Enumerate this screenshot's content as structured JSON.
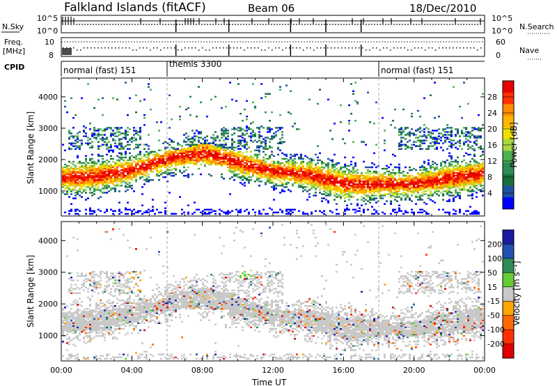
{
  "header": {
    "title": "Falkland Islands (fitACF)",
    "beam": "Beam 06",
    "date": "18/Dec/2010"
  },
  "panels": {
    "nsky_label": "N.Sky",
    "nsearch_label": "N.Search",
    "freq_label_line1": "Freq.",
    "freq_label_line2": "[MHz]",
    "nave_label": "Nave",
    "cpid_label": "CPID",
    "nsky_ticks": [
      "10^5",
      "10^0"
    ],
    "nsearch_ticks": [
      "10^5",
      "10^0"
    ],
    "freq_ticks": [
      "10",
      "8"
    ],
    "nave_ticks": [
      "60",
      "0"
    ]
  },
  "cpid_segments": [
    {
      "label": "normal (fast) 151",
      "start_hour": 0.0,
      "end_hour": 6.0
    },
    {
      "label": "themis 3300",
      "start_hour": 6.0,
      "end_hour": 18.0
    },
    {
      "label": "normal (fast) 151",
      "start_hour": 18.0,
      "end_hour": 24.0
    }
  ],
  "colorbars": {
    "power": {
      "label": "Power [dB]",
      "ticks": [
        "28",
        "24",
        "20",
        "16",
        "12",
        "8",
        "4"
      ],
      "colors": [
        "#e60000",
        "#ff3000",
        "#ff8c00",
        "#ffb400",
        "#f0e000",
        "#a8d840",
        "#50b050",
        "#2e8b57",
        "#1a6e3a",
        "#1e50a0",
        "#0000ff"
      ]
    },
    "velocity": {
      "label": "Velocity [m s⁻¹]",
      "ticks": [
        "200",
        "100",
        "50",
        "15",
        "-15",
        "-50",
        "-100",
        "-200"
      ],
      "colors": [
        "#1a1aa0",
        "#2050b0",
        "#2e8b57",
        "#66cc33",
        "#c8c8c8",
        "#ffa500",
        "#ff6a00",
        "#ff3000",
        "#e00000"
      ]
    }
  },
  "chart_data": [
    {
      "type": "heatmap",
      "name": "power",
      "ylabel": "Slant Range [km]",
      "yticks": [
        "1000",
        "2000",
        "3000",
        "4000"
      ],
      "ylim": [
        200,
        4600
      ],
      "xlim": [
        0,
        24
      ],
      "xticks": [
        "00:00",
        "04:00",
        "08:00",
        "12:00",
        "16:00",
        "20:00",
        "00:00"
      ],
      "dominant_range_km_by_hour": [
        [
          0,
          1400
        ],
        [
          2,
          1450
        ],
        [
          4,
          1650
        ],
        [
          6,
          2000
        ],
        [
          8,
          2200
        ],
        [
          10,
          1900
        ],
        [
          12,
          1600
        ],
        [
          14,
          1500
        ],
        [
          16,
          1200
        ],
        [
          18,
          1200
        ],
        [
          20,
          1200
        ],
        [
          22,
          1400
        ],
        [
          24,
          1550
        ]
      ]
    },
    {
      "type": "heatmap",
      "name": "velocity",
      "ylabel": "Slant Range [km]",
      "xlabel": "Time UT",
      "yticks": [
        "1000",
        "2000",
        "3000",
        "4000"
      ],
      "ylim": [
        200,
        4600
      ],
      "xlim": [
        0,
        24
      ],
      "xticks": [
        "00:00",
        "04:00",
        "08:00",
        "12:00",
        "16:00",
        "20:00",
        "00:00"
      ]
    }
  ]
}
